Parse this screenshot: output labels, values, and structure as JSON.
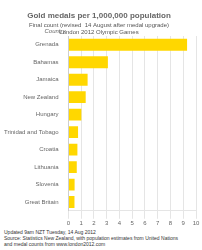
{
  "chart_data": {
    "type": "bar",
    "orientation": "horizontal",
    "title": "Gold medals per 1,000,000 population",
    "subtitle": [
      "Final count (revised  14 August after medal upgrade)",
      "London 2012 Olympic Games"
    ],
    "ylabel": "Country",
    "categories": [
      "Great Britain",
      "Slovenia",
      "Lithuania",
      "Croatia",
      "Trinidad and Tobago",
      "Hungary",
      "New Zealand",
      "Jamaica",
      "Bahamas",
      "Grenada"
    ],
    "values": [
      0.47,
      0.48,
      0.65,
      0.7,
      0.75,
      1.01,
      1.35,
      1.5,
      3.09,
      9.3
    ],
    "color": "#FFD700",
    "xlim": [
      0,
      10
    ],
    "xticks": [
      0,
      1,
      2,
      3,
      4,
      5,
      6,
      7,
      8,
      9,
      10
    ],
    "grid": true,
    "annotations": [
      "Updated 9am NZT Tuesday, 14 Aug 2012",
      "Source: Statistics New Zealand, with population estimates from United Nations",
      "and medal counts from www.london2012.com"
    ]
  }
}
